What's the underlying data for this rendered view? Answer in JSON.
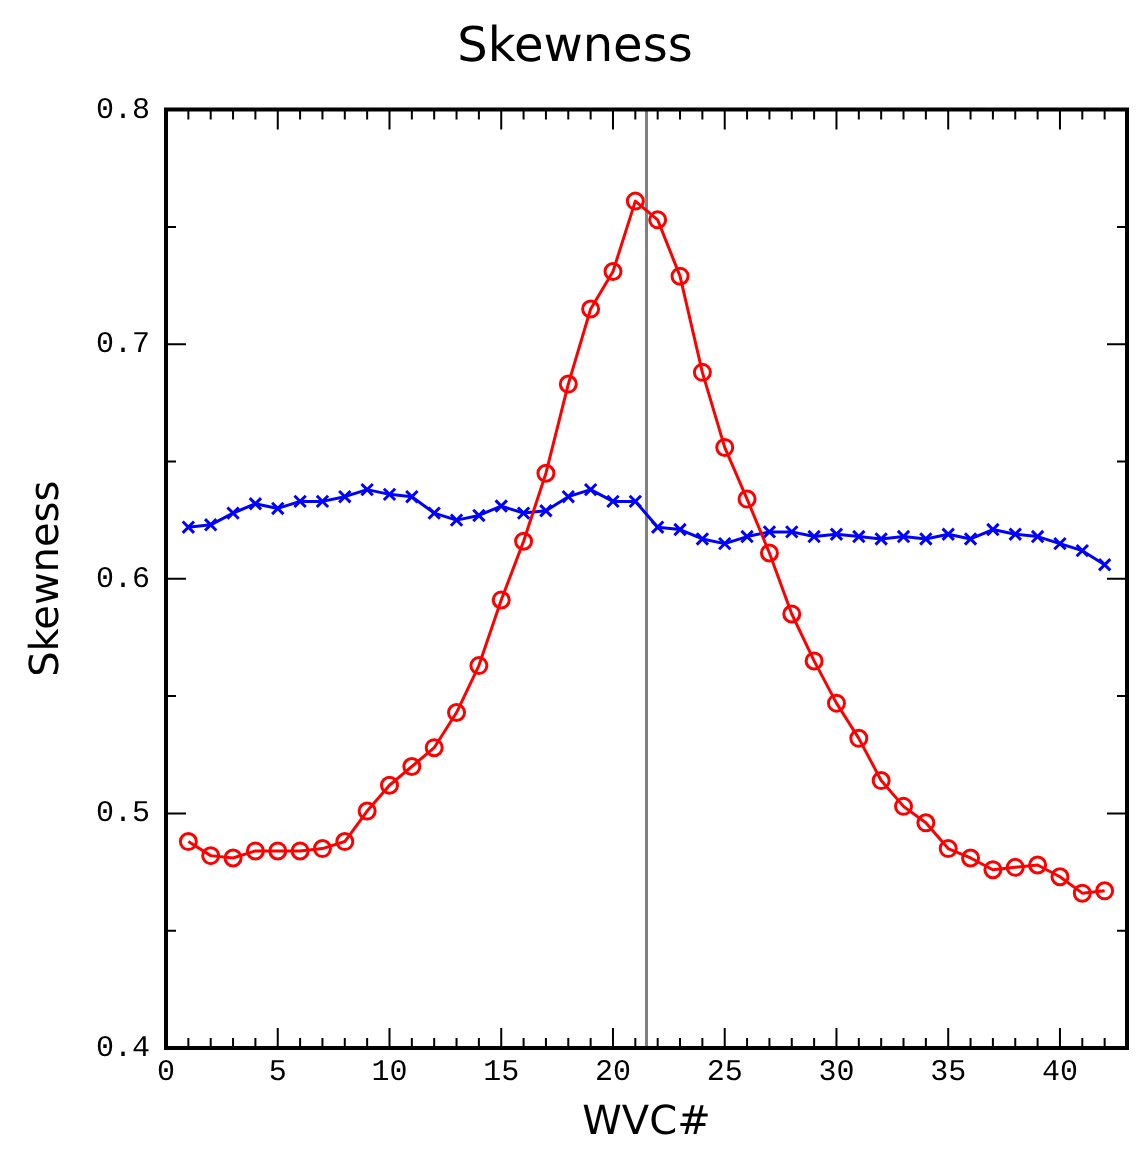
{
  "chart_data": {
    "type": "line",
    "title": "Skewness",
    "xlabel": "WVC#",
    "ylabel": "Skewness",
    "x": [
      1,
      2,
      3,
      4,
      5,
      6,
      7,
      8,
      9,
      10,
      11,
      12,
      13,
      14,
      15,
      16,
      17,
      18,
      19,
      20,
      21,
      22,
      23,
      24,
      25,
      26,
      27,
      28,
      29,
      30,
      31,
      32,
      33,
      34,
      35,
      36,
      37,
      38,
      39,
      40,
      41,
      42
    ],
    "series": [
      {
        "color": "#ff0000",
        "marker": "circle",
        "values": [
          0.488,
          0.482,
          0.481,
          0.484,
          0.484,
          0.484,
          0.485,
          0.488,
          0.501,
          0.512,
          0.52,
          0.528,
          0.543,
          0.563,
          0.591,
          0.616,
          0.645,
          0.683,
          0.715,
          0.731,
          0.761,
          0.753,
          0.729,
          0.688,
          0.656,
          0.634,
          0.611,
          0.585,
          0.565,
          0.547,
          0.532,
          0.514,
          0.503,
          0.496,
          0.485,
          0.481,
          0.476,
          0.477,
          0.478,
          0.473,
          0.466,
          0.467
        ]
      },
      {
        "color": "#0000ff",
        "marker": "cross",
        "values": [
          0.622,
          0.623,
          0.628,
          0.632,
          0.63,
          0.633,
          0.633,
          0.635,
          0.638,
          0.636,
          0.635,
          0.628,
          0.625,
          0.627,
          0.631,
          0.628,
          0.629,
          0.635,
          0.638,
          0.633,
          0.633,
          0.622,
          0.621,
          0.617,
          0.615,
          0.618,
          0.62,
          0.62,
          0.618,
          0.619,
          0.618,
          0.617,
          0.618,
          0.617,
          0.619,
          0.617,
          0.621,
          0.619,
          0.618,
          0.615,
          0.612,
          0.606
        ]
      }
    ],
    "xlim": [
      0,
      43
    ],
    "xticks": [
      0,
      {
        "value": 1,
        "label": null
      },
      {
        "value": 2,
        "label": null
      },
      {
        "value": 3,
        "label": null
      },
      {
        "value": 4,
        "label": null
      },
      5,
      {
        "value": 6,
        "label": null
      },
      {
        "value": 7,
        "label": null
      },
      {
        "value": 8,
        "label": null
      },
      {
        "value": 9,
        "label": null
      },
      10,
      {
        "value": 11,
        "label": null
      },
      {
        "value": 12,
        "label": null
      },
      {
        "value": 13,
        "label": null
      },
      {
        "value": 14,
        "label": null
      },
      15,
      {
        "value": 16,
        "label": null
      },
      {
        "value": 17,
        "label": null
      },
      {
        "value": 18,
        "label": null
      },
      {
        "value": 19,
        "label": null
      },
      20,
      {
        "value": 21,
        "label": null
      },
      {
        "value": 22,
        "label": null
      },
      {
        "value": 23,
        "label": null
      },
      {
        "value": 24,
        "label": null
      },
      25,
      {
        "value": 26,
        "label": null
      },
      {
        "value": 27,
        "label": null
      },
      {
        "value": 28,
        "label": null
      },
      {
        "value": 29,
        "label": null
      },
      30,
      {
        "value": 31,
        "label": null
      },
      {
        "value": 32,
        "label": null
      },
      {
        "value": 33,
        "label": null
      },
      {
        "value": 34,
        "label": null
      },
      35,
      {
        "value": 36,
        "label": null
      },
      {
        "value": 37,
        "label": null
      },
      {
        "value": 38,
        "label": null
      },
      {
        "value": 39,
        "label": null
      },
      40,
      {
        "value": 41,
        "label": null
      },
      {
        "value": 42,
        "label": null
      },
      {
        "value": 43,
        "label": null
      }
    ],
    "ylim": [
      0.4,
      0.8
    ],
    "yticks": [
      0.4,
      {
        "value": 0.45,
        "label": null
      },
      0.5,
      {
        "value": 0.55,
        "label": null
      },
      0.6,
      {
        "value": 0.65,
        "label": null
      },
      0.7,
      {
        "value": 0.75,
        "label": null
      },
      0.8
    ],
    "ref_lines": [
      {
        "axis": "x",
        "value": 21.5,
        "color": "#808080"
      }
    ],
    "grid": false,
    "legend": false,
    "line_style": "solid"
  }
}
